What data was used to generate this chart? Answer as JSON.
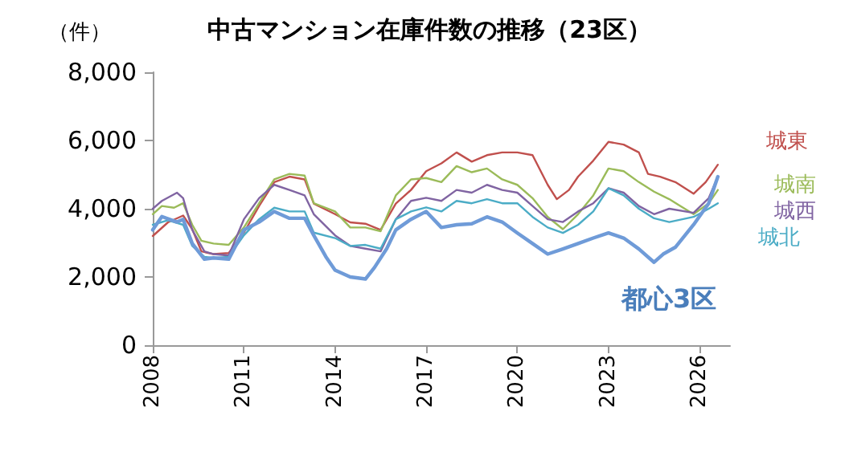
{
  "chart_data": {
    "type": "line",
    "title": "中古マンション在庫件数の推移（23区）",
    "ylabel": "（件）",
    "xlim": [
      2008,
      2027
    ],
    "xticks": [
      2008,
      2011,
      2014,
      2017,
      2020,
      2023,
      2026
    ],
    "ylim": [
      0,
      8000
    ],
    "yticks": [
      {
        "value": 0,
        "label": "0"
      },
      {
        "value": 2000,
        "label": "2,000"
      },
      {
        "value": 4000,
        "label": "4,000"
      },
      {
        "value": 6000,
        "label": "6,000"
      },
      {
        "value": 8000,
        "label": "8,000"
      }
    ],
    "grid": false,
    "legend": false,
    "marker": "none",
    "series": [
      {
        "name": "城東",
        "color": "#c0504d",
        "x": [
          2008,
          2008.5,
          2009,
          2009.3,
          2009.6,
          2010,
          2010.5,
          2011,
          2011.5,
          2012,
          2012.5,
          2013,
          2013.3,
          2014,
          2014.5,
          2015,
          2015.5,
          2016,
          2016.5,
          2017,
          2017.5,
          2018,
          2018.5,
          2019,
          2019.5,
          2020,
          2020.5,
          2021,
          2021.3,
          2021.7,
          2022,
          2022.5,
          2023,
          2023.5,
          2024,
          2024.3,
          2024.7,
          2025.2,
          2025.8,
          2026.2,
          2026.6
        ],
        "values": [
          3200,
          3600,
          3800,
          3400,
          2750,
          2670,
          2700,
          3300,
          4080,
          4780,
          4940,
          4860,
          4150,
          3840,
          3600,
          3560,
          3380,
          4150,
          4550,
          5100,
          5330,
          5650,
          5380,
          5570,
          5650,
          5650,
          5570,
          4700,
          4280,
          4550,
          4940,
          5410,
          5960,
          5880,
          5650,
          5020,
          4940,
          4780,
          4440,
          4780,
          5290
        ]
      },
      {
        "name": "城南",
        "color": "#9bbb59",
        "x": [
          2008,
          2008.3,
          2008.7,
          2009,
          2009.3,
          2009.6,
          2010,
          2010.5,
          2011,
          2011.5,
          2012,
          2012.5,
          2013,
          2013.3,
          2014,
          2014.5,
          2015,
          2015.5,
          2016,
          2016.5,
          2017,
          2017.5,
          2018,
          2018.5,
          2019,
          2019.5,
          2020,
          2020.5,
          2021,
          2021.5,
          2022,
          2022.5,
          2023,
          2023.5,
          2024,
          2024.5,
          2025,
          2025.8,
          2026.3,
          2026.6
        ],
        "values": [
          3840,
          4080,
          4030,
          4160,
          3530,
          3060,
          2980,
          2940,
          3450,
          4160,
          4860,
          5020,
          4970,
          4160,
          3920,
          3450,
          3450,
          3340,
          4390,
          4860,
          4900,
          4780,
          5250,
          5070,
          5180,
          4860,
          4700,
          4310,
          3760,
          3400,
          3840,
          4390,
          5180,
          5100,
          4780,
          4500,
          4280,
          3840,
          4160,
          4550
        ]
      },
      {
        "name": "城西",
        "color": "#8064a2",
        "x": [
          2008,
          2008.3,
          2008.8,
          2009,
          2009.3,
          2009.7,
          2010,
          2010.5,
          2011,
          2011.5,
          2012,
          2012.5,
          2013,
          2013.3,
          2014,
          2014.5,
          2015,
          2015.5,
          2016,
          2016.5,
          2017,
          2017.5,
          2018,
          2018.5,
          2019,
          2019.5,
          2020,
          2020.5,
          2021,
          2021.5,
          2022,
          2022.5,
          2023,
          2023.5,
          2024,
          2024.5,
          2025,
          2025.8,
          2026.3,
          2026.6
        ],
        "values": [
          4000,
          4230,
          4470,
          4310,
          3380,
          2750,
          2670,
          2630,
          3690,
          4310,
          4700,
          4550,
          4390,
          3840,
          3220,
          2910,
          2830,
          2750,
          3690,
          4230,
          4320,
          4230,
          4550,
          4470,
          4700,
          4550,
          4470,
          4080,
          3690,
          3610,
          3920,
          4160,
          4600,
          4470,
          4080,
          3840,
          4000,
          3880,
          4310,
          4940
        ]
      },
      {
        "name": "城北",
        "color": "#4bacc6",
        "x": [
          2008,
          2008.5,
          2009,
          2009.3,
          2009.7,
          2010,
          2010.5,
          2011,
          2011.5,
          2012,
          2012.5,
          2013,
          2013.3,
          2014,
          2014.5,
          2015,
          2015.5,
          2016,
          2016.5,
          2017,
          2017.5,
          2018,
          2018.5,
          2019,
          2019.5,
          2020,
          2020.5,
          2021,
          2021.5,
          2022,
          2022.5,
          2023,
          2023.5,
          2024,
          2024.5,
          2025,
          2025.8,
          2026.3,
          2026.6
        ],
        "values": [
          3530,
          3660,
          3530,
          2910,
          2590,
          2560,
          2590,
          3220,
          3690,
          4030,
          3920,
          3920,
          3300,
          3140,
          2910,
          2940,
          2830,
          3690,
          3920,
          4040,
          3920,
          4230,
          4160,
          4280,
          4160,
          4160,
          3760,
          3450,
          3290,
          3530,
          3920,
          4600,
          4390,
          4000,
          3720,
          3610,
          3760,
          4000,
          4160
        ]
      },
      {
        "name": "都心3区",
        "color": "#6f9bd8",
        "x": [
          2008,
          2008.3,
          2008.8,
          2009,
          2009.3,
          2009.7,
          2010,
          2010.5,
          2011,
          2011.5,
          2012,
          2012.5,
          2013,
          2013.3,
          2013.7,
          2014,
          2014.5,
          2015,
          2015.3,
          2015.7,
          2016,
          2016.5,
          2017,
          2017.5,
          2018,
          2018.5,
          2019,
          2019.5,
          2020,
          2020.5,
          2021,
          2021.5,
          2022,
          2022.5,
          2023,
          2023.5,
          2024,
          2024.5,
          2024.8,
          2025.2,
          2025.8,
          2026.3,
          2026.6
        ],
        "values": [
          3380,
          3770,
          3610,
          3690,
          2980,
          2520,
          2560,
          2520,
          3380,
          3610,
          3920,
          3720,
          3720,
          3220,
          2590,
          2200,
          2000,
          1940,
          2280,
          2830,
          3380,
          3690,
          3920,
          3450,
          3530,
          3560,
          3760,
          3610,
          3290,
          2980,
          2670,
          2820,
          2980,
          3140,
          3290,
          3140,
          2820,
          2430,
          2670,
          2870,
          3530,
          4160,
          4940
        ]
      }
    ]
  }
}
